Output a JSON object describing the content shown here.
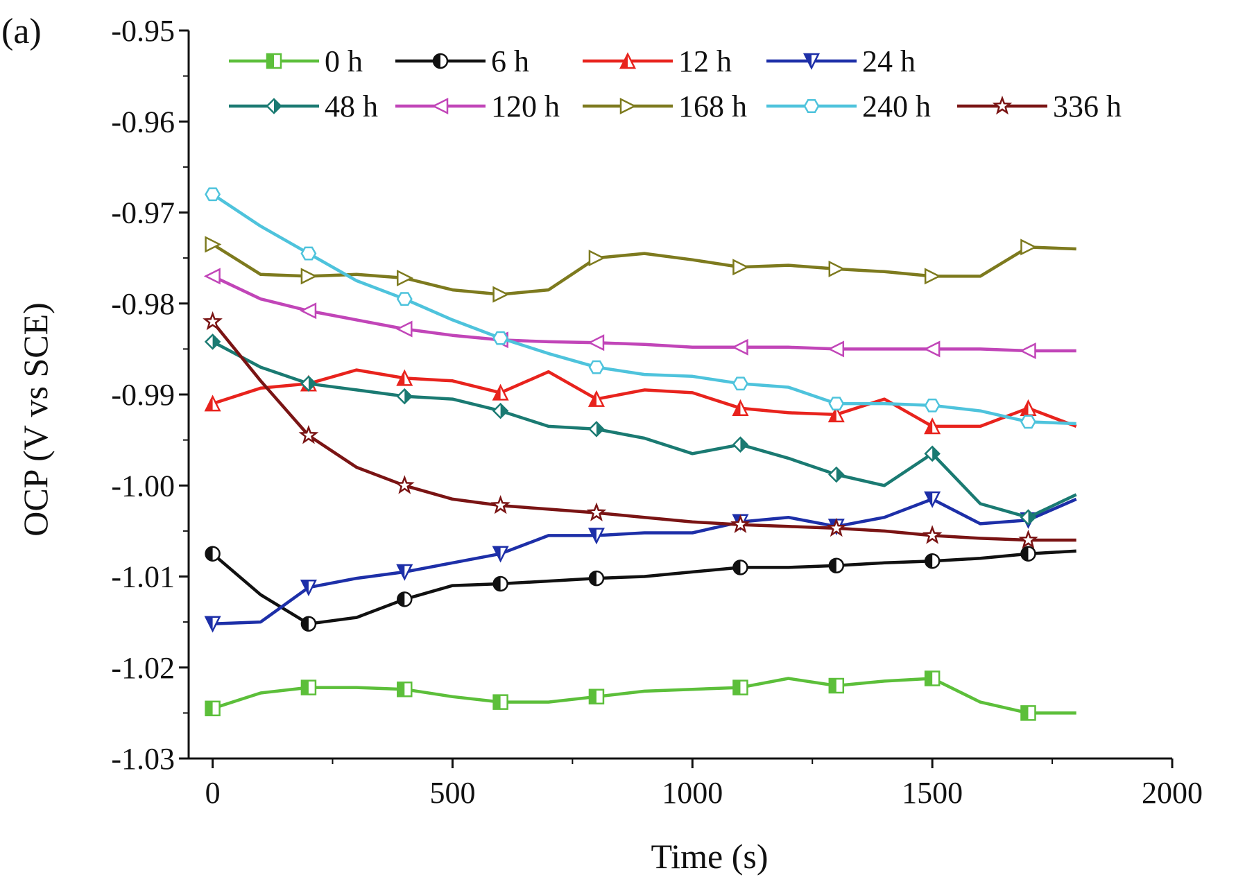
{
  "panel_label": "(a)",
  "chart_data": {
    "type": "line",
    "title": "",
    "xlabel": "Time (s)",
    "ylabel": "OCP (V vs SCE)",
    "xlim": [
      -50,
      2000
    ],
    "ylim": [
      -1.03,
      -0.95
    ],
    "xticks": [
      0,
      500,
      1000,
      1500,
      2000
    ],
    "yticks": [
      -0.95,
      -0.96,
      -0.97,
      -0.98,
      -0.99,
      -1.0,
      -1.01,
      -1.02,
      -1.03
    ],
    "xtick_labels": [
      "0",
      "500",
      "1000",
      "1500",
      "2000"
    ],
    "ytick_labels": [
      "-0.95",
      "-0.96",
      "-0.97",
      "-0.98",
      "-0.99",
      "-1.00",
      "-1.01",
      "-1.02",
      "-1.03"
    ],
    "grid": false,
    "legend_position": "top",
    "x": [
      0,
      100,
      200,
      300,
      400,
      500,
      600,
      700,
      800,
      900,
      1000,
      1100,
      1200,
      1300,
      1400,
      1500,
      1600,
      1700,
      1800
    ],
    "series": [
      {
        "name": "0 h",
        "color": "#5cbf3a",
        "marker": "square",
        "values": [
          -1.0245,
          -1.0228,
          -1.0222,
          -1.0222,
          -1.0224,
          -1.0232,
          -1.0238,
          -1.0238,
          -1.0232,
          -1.0226,
          -1.0224,
          -1.0222,
          -1.0212,
          -1.022,
          -1.0215,
          -1.0212,
          -1.0238,
          -1.025,
          -1.025
        ]
      },
      {
        "name": "6 h",
        "color": "#111111",
        "marker": "half-circle",
        "values": [
          -1.0075,
          -1.012,
          -1.0152,
          -1.0145,
          -1.0125,
          -1.011,
          -1.0108,
          -1.0105,
          -1.0102,
          -1.01,
          -1.0095,
          -1.009,
          -1.009,
          -1.0088,
          -1.0085,
          -1.0083,
          -1.008,
          -1.0075,
          -1.0072
        ]
      },
      {
        "name": "12 h",
        "color": "#e8231d",
        "marker": "triangle-up",
        "values": [
          -0.991,
          -0.9893,
          -0.9888,
          -0.9873,
          -0.9882,
          -0.9885,
          -0.9898,
          -0.9875,
          -0.9905,
          -0.9895,
          -0.9898,
          -0.9915,
          -0.992,
          -0.9922,
          -0.9905,
          -0.9935,
          -0.9935,
          -0.9915,
          -0.9935
        ]
      },
      {
        "name": "24 h",
        "color": "#1d2fa8",
        "marker": "triangle-down",
        "values": [
          -1.0152,
          -1.015,
          -1.0112,
          -1.0102,
          -1.0095,
          -1.0085,
          -1.0075,
          -1.0055,
          -1.0055,
          -1.0052,
          -1.0052,
          -1.004,
          -1.0035,
          -1.0045,
          -1.0035,
          -1.0015,
          -1.0042,
          -1.0038,
          -1.0015
        ]
      },
      {
        "name": "48 h",
        "color": "#1a7a72",
        "marker": "diamond-half",
        "values": [
          -0.9842,
          -0.987,
          -0.9888,
          -0.9895,
          -0.9902,
          -0.9905,
          -0.9918,
          -0.9935,
          -0.9938,
          -0.9948,
          -0.9965,
          -0.9955,
          -0.997,
          -0.9988,
          -1.0,
          -0.9965,
          -1.002,
          -1.0035,
          -1.001
        ]
      },
      {
        "name": "120 h",
        "color": "#c145b8",
        "marker": "triangle-left",
        "values": [
          -0.977,
          -0.9795,
          -0.9808,
          -0.9818,
          -0.9828,
          -0.9835,
          -0.984,
          -0.9842,
          -0.9843,
          -0.9845,
          -0.9848,
          -0.9848,
          -0.9848,
          -0.985,
          -0.985,
          -0.985,
          -0.985,
          -0.9852,
          -0.9852
        ]
      },
      {
        "name": "168 h",
        "color": "#7d7a1e",
        "marker": "triangle-right",
        "values": [
          -0.9735,
          -0.9768,
          -0.977,
          -0.9768,
          -0.9772,
          -0.9785,
          -0.979,
          -0.9785,
          -0.975,
          -0.9745,
          -0.9752,
          -0.976,
          -0.9758,
          -0.9762,
          -0.9765,
          -0.977,
          -0.977,
          -0.9738,
          -0.974
        ]
      },
      {
        "name": "240 h",
        "color": "#4ec3dc",
        "marker": "hexagon",
        "values": [
          -0.968,
          -0.9715,
          -0.9745,
          -0.9775,
          -0.9795,
          -0.9818,
          -0.9838,
          -0.9855,
          -0.987,
          -0.9878,
          -0.988,
          -0.9888,
          -0.9892,
          -0.991,
          -0.991,
          -0.9912,
          -0.9918,
          -0.993,
          -0.9932
        ]
      },
      {
        "name": "336 h",
        "color": "#7a1414",
        "marker": "star",
        "values": [
          -0.982,
          -0.9885,
          -0.9945,
          -0.998,
          -1.0,
          -1.0015,
          -1.0022,
          -1.0026,
          -1.003,
          -1.0035,
          -1.004,
          -1.0043,
          -1.0045,
          -1.0047,
          -1.005,
          -1.0055,
          -1.0058,
          -1.006,
          -1.006
        ]
      }
    ]
  }
}
